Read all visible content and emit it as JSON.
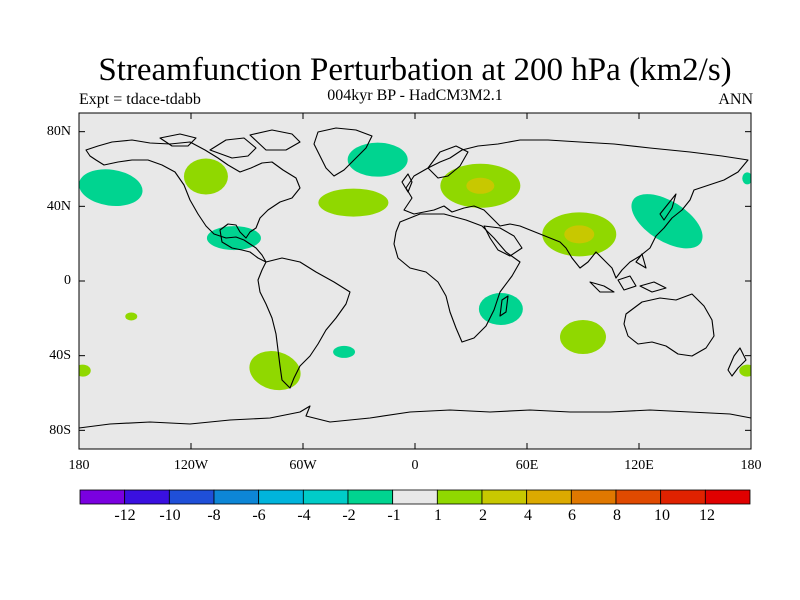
{
  "title": "Streamfunction Perturbation at 200 hPa (km2/s)",
  "expt_label": "Expt = tdace-tdabb",
  "subtitle": "004kyr BP - HadCM3M2.1",
  "season": "ANN",
  "map": {
    "background": "#e8e8e8",
    "coastline_color": "#000000",
    "lat_ticks": [
      "80N",
      "40N",
      "0",
      "40S",
      "80S"
    ],
    "lon_ticks": [
      "180",
      "120W",
      "60W",
      "0",
      "60E",
      "120E",
      "180"
    ],
    "lat_values": [
      80,
      40,
      0,
      -40,
      -80
    ],
    "lon_values": [
      -180,
      -120,
      -60,
      0,
      60,
      120,
      180
    ]
  },
  "colorbar": {
    "colors": [
      "#7a00e0",
      "#3a10e0",
      "#1f4fd8",
      "#0d86d6",
      "#00b4dc",
      "#00ccc8",
      "#00d490",
      "#e8e8e8",
      "#90d800",
      "#c8c800",
      "#dcaa00",
      "#e07800",
      "#e04a00",
      "#e02200",
      "#e00000"
    ],
    "labels": [
      "-12",
      "-10",
      "-8",
      "-6",
      "-4",
      "-2",
      "-1",
      "1",
      "2",
      "4",
      "6",
      "8",
      "10",
      "12"
    ]
  },
  "anomaly_regions": [
    {
      "name": "north-pacific-east",
      "level": "-2",
      "lon": -163,
      "lat": 50
    },
    {
      "name": "north-america-west",
      "level": "2",
      "lon": -112,
      "lat": 56
    },
    {
      "name": "greenland-east",
      "level": "-2",
      "lon": -20,
      "lat": 65
    },
    {
      "name": "north-atlantic",
      "level": "2",
      "lon": -33,
      "lat": 42
    },
    {
      "name": "caribbean",
      "level": "-2",
      "lon": -97,
      "lat": 23
    },
    {
      "name": "eastern-europe",
      "level": "2",
      "lon": 35,
      "lat": 51
    },
    {
      "name": "eastern-europe-core",
      "level": "4",
      "lon": 35,
      "lat": 51
    },
    {
      "name": "south-asia",
      "level": "2",
      "lon": 88,
      "lat": 25
    },
    {
      "name": "south-asia-core",
      "level": "4",
      "lon": 88,
      "lat": 25
    },
    {
      "name": "east-asia-pacific",
      "level": "-2",
      "lon": 135,
      "lat": 32
    },
    {
      "name": "madagascar",
      "level": "-2",
      "lon": 46,
      "lat": -15
    },
    {
      "name": "south-indian-ocean",
      "level": "2",
      "lon": 90,
      "lat": -30
    },
    {
      "name": "south-america-south",
      "level": "2",
      "lon": -75,
      "lat": -48
    },
    {
      "name": "south-atlantic-small",
      "level": "-2",
      "lon": -38,
      "lat": -38
    },
    {
      "name": "south-pacific-small",
      "level": "2",
      "lon": -152,
      "lat": -19
    },
    {
      "name": "west-pacific-edge",
      "level": "-2",
      "lon": 178,
      "lat": 55
    },
    {
      "name": "south-pacific-west",
      "level": "2",
      "lon": -178,
      "lat": -48
    },
    {
      "name": "south-pacific-east",
      "level": "2",
      "lon": 178,
      "lat": -48
    }
  ]
}
